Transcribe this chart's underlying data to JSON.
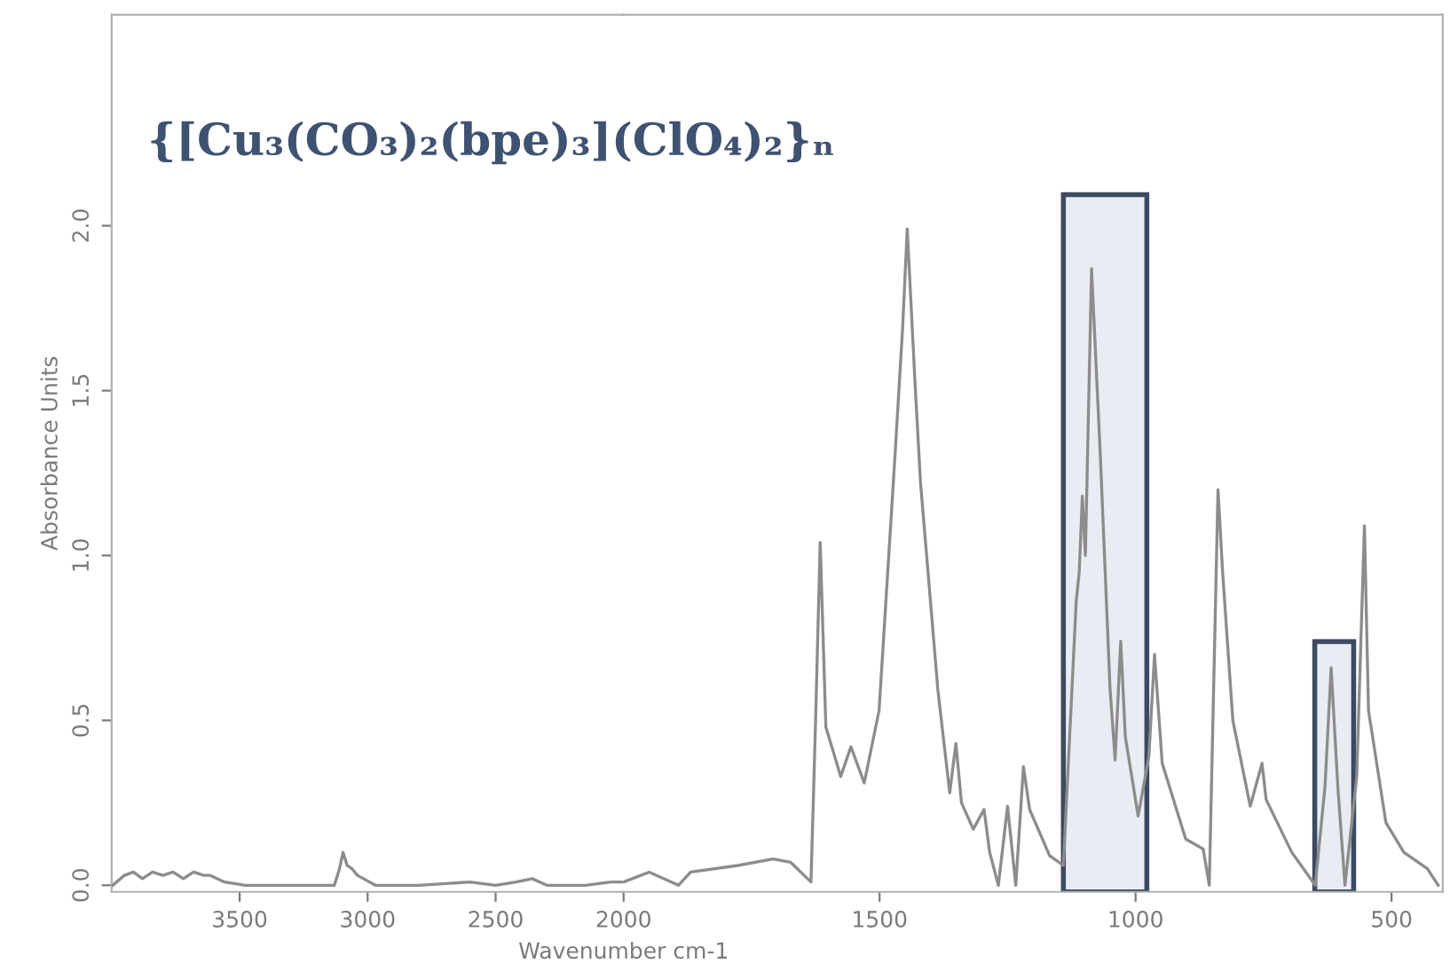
{
  "chart_data": [
    {
      "type": "line",
      "title": "{[Cu₃(CO₃)₂(bpe)₃](ClO₄)₂}ₙ",
      "ylabel": "Absorbance Units",
      "x": [
        3996,
        3950,
        3915,
        3880,
        3840,
        3800,
        3760,
        3720,
        3680,
        3640,
        3615,
        3560,
        3477,
        3300,
        3130,
        3110,
        3096,
        3080,
        3061,
        3040,
        3016,
        2970,
        2800,
        2600,
        2500,
        2420,
        2357,
        2300,
        2150,
        2050,
        2000
      ],
      "series": [
        {
          "color": "#8c8c8c",
          "values": [
            0.0,
            0.03,
            0.04,
            0.02,
            0.04,
            0.03,
            0.04,
            0.02,
            0.04,
            0.03,
            0.03,
            0.01,
            0.0,
            0.0,
            0.0,
            0.05,
            0.1,
            0.06,
            0.05,
            0.03,
            0.02,
            0.0,
            0.0,
            0.01,
            0.0,
            0.01,
            0.02,
            0.0,
            0.0,
            0.01,
            0.01
          ]
        }
      ],
      "xlim": [
        4000,
        2000
      ],
      "ylim": [
        -0.02,
        2.64
      ],
      "xticks": [
        3500,
        3000,
        2500,
        2000
      ],
      "yticks": [
        {
          "value": 0.0,
          "label": "0.0"
        },
        {
          "value": 0.5,
          "label": "0.5"
        },
        {
          "value": 1.0,
          "label": "1.0"
        },
        {
          "value": 1.5,
          "label": "1.5"
        },
        {
          "value": 2.0,
          "label": "2.0"
        }
      ],
      "grid": false
    },
    {
      "type": "line",
      "xlabel": "Wavenumber cm-1",
      "x": [
        2000,
        1950,
        1893,
        1869,
        1777,
        1708,
        1674,
        1634,
        1625,
        1616,
        1605,
        1576,
        1556,
        1530,
        1501,
        1470,
        1455,
        1446,
        1430,
        1420,
        1386,
        1363,
        1351,
        1340,
        1317,
        1296,
        1285,
        1268,
        1250,
        1234,
        1219,
        1207,
        1168,
        1141,
        1116,
        1110,
        1104,
        1098,
        1086,
        1069,
        1050,
        1040,
        1029,
        1020,
        995,
        974,
        963,
        948,
        902,
        868,
        856,
        839,
        830,
        810,
        776,
        753,
        745,
        695,
        649,
        630,
        618,
        605,
        591,
        568,
        553,
        545,
        511,
        476,
        430,
        409
      ],
      "series": [
        {
          "color": "#8c8c8c",
          "values": [
            0.01,
            0.04,
            0.0,
            0.04,
            0.06,
            0.08,
            0.07,
            0.01,
            0.5,
            1.04,
            0.48,
            0.33,
            0.42,
            0.31,
            0.53,
            1.3,
            1.69,
            1.99,
            1.5,
            1.22,
            0.59,
            0.28,
            0.43,
            0.25,
            0.17,
            0.23,
            0.1,
            0.0,
            0.24,
            0.0,
            0.36,
            0.23,
            0.09,
            0.06,
            0.86,
            0.95,
            1.18,
            1.0,
            1.87,
            1.31,
            0.6,
            0.38,
            0.74,
            0.45,
            0.21,
            0.39,
            0.7,
            0.37,
            0.14,
            0.11,
            0.0,
            1.2,
            0.95,
            0.5,
            0.24,
            0.37,
            0.26,
            0.1,
            0.0,
            0.3,
            0.66,
            0.3,
            0.0,
            0.33,
            1.09,
            0.53,
            0.19,
            0.1,
            0.05,
            0.0
          ]
        }
      ],
      "xlim": [
        2000,
        400
      ],
      "ylim": [
        -0.02,
        2.64
      ],
      "xticks": [
        1500,
        1000,
        500
      ],
      "tick_labels": "x",
      "bands": [
        {
          "axis": "x",
          "from": 1141,
          "to": 978,
          "color": "#e9edf3"
        },
        {
          "axis": "x",
          "from": 650,
          "to": 574,
          "color": "#e9edf3"
        }
      ],
      "grid": false
    }
  ]
}
